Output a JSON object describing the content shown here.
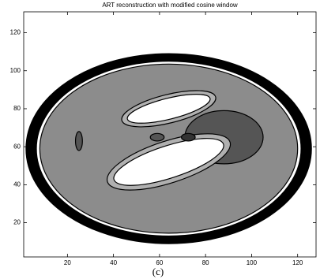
{
  "chart_data": {
    "type": "contour",
    "title": "ART reconstruction with modified cosine window",
    "caption": "(c)",
    "xlim": [
      1,
      128
    ],
    "ylim": [
      2,
      131
    ],
    "xticks": [
      20,
      40,
      60,
      80,
      100,
      120
    ],
    "yticks": [
      20,
      40,
      60,
      80,
      100,
      120
    ],
    "ellipses": [
      {
        "cx": 64,
        "cy": 59,
        "rx": 62,
        "ry": 50,
        "angle": 0,
        "color": "#000000"
      },
      {
        "cx": 64,
        "cy": 59,
        "rx": 57.5,
        "ry": 46,
        "angle": 0,
        "color": "#ffffff"
      },
      {
        "cx": 64,
        "cy": 59,
        "rx": 56,
        "ry": 44.5,
        "angle": 0,
        "color": "#8c8c8c"
      },
      {
        "cx": 64,
        "cy": 80,
        "rx": 21,
        "ry": 7.5,
        "angle": 14,
        "color": "#b0b0b0"
      },
      {
        "cx": 64,
        "cy": 80,
        "rx": 18.5,
        "ry": 5.5,
        "angle": 14,
        "color": "#ffffff"
      },
      {
        "cx": 88,
        "cy": 65,
        "rx": 17,
        "ry": 14,
        "angle": 0,
        "color": "#555555"
      },
      {
        "cx": 64,
        "cy": 52,
        "rx": 28,
        "ry": 11,
        "angle": 18,
        "color": "#b0b0b0"
      },
      {
        "cx": 64,
        "cy": 52,
        "rx": 25,
        "ry": 8.5,
        "angle": 18,
        "color": "#ffffff"
      },
      {
        "cx": 59,
        "cy": 65,
        "rx": 3,
        "ry": 2,
        "angle": 0,
        "color": "#555555"
      },
      {
        "cx": 72.5,
        "cy": 65,
        "rx": 3,
        "ry": 2,
        "angle": 0,
        "color": "#333333"
      },
      {
        "cx": 25,
        "cy": 63,
        "rx": 1.5,
        "ry": 5,
        "angle": 0,
        "color": "#555555"
      }
    ]
  }
}
